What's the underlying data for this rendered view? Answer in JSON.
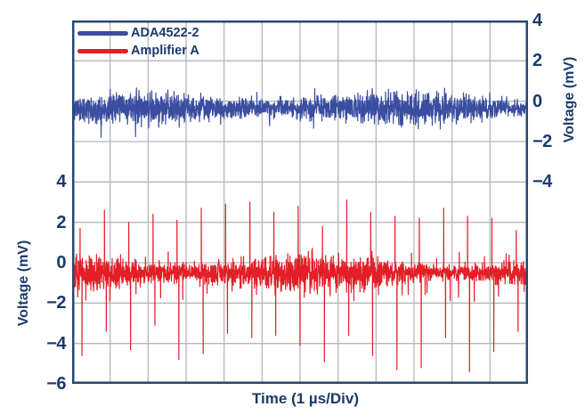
{
  "colors": {
    "text_navy": "#1a3a6c",
    "grid": "#b4b7c0",
    "border": "#27496f",
    "trace_blue": "#3a4da0",
    "trace_red": "#e31e26",
    "background": "#ffffff"
  },
  "figure": {
    "legend": [
      {
        "label": "ADA4522-2"
      },
      {
        "label": "Amplifier A"
      }
    ],
    "x_axis_title": "Time (1 µs/Div)",
    "left_axis_title": "Voltage (mV)",
    "right_axis_title": "Voltage (mV)"
  },
  "chart_data": {
    "type": "line",
    "title": "",
    "xlabel": "Time (1 µs/Div)",
    "x_divisions": 12,
    "x_div_unit_us": 1,
    "grid": {
      "cols": 12,
      "rows": 9,
      "mv_per_row": 2,
      "grid_on": true
    },
    "right_axis": {
      "title": "Voltage (mV)",
      "ticks": [
        4,
        2,
        0,
        -2,
        -4
      ],
      "tick_labels": [
        "4",
        "2",
        "0",
        "−2",
        "−4"
      ],
      "zero_row": 2,
      "applies_to": "ADA4522-2"
    },
    "left_axis": {
      "title": "Voltage (mV)",
      "ticks": [
        4,
        2,
        0,
        -2,
        -4,
        -6
      ],
      "tick_labels": [
        "4",
        "2",
        "0",
        "−2",
        "−4",
        "−6"
      ],
      "zero_row": 6,
      "applies_to": "Amplifier A"
    },
    "legend_position": "top-left-inside",
    "seed": 11,
    "series": [
      {
        "name": "ADA4522-2",
        "color": "#3a4da0",
        "axis": "right",
        "baseline_mv": -0.35,
        "noise_pp_mv": 1.0,
        "description": "flat wideband noise band ~1 mV p-p centered slightly below 0, no EMI spikes"
      },
      {
        "name": "Amplifier A",
        "color": "#e31e26",
        "axis": "left",
        "baseline_mv": -0.5,
        "noise_pp_mv": 1.1,
        "description": "noise band centered ~-0.5 mV with periodic bipolar EMI spikes every ~0.64 µs",
        "spikes": {
          "t_us": [
            0.21,
            0.85,
            1.49,
            2.13,
            2.76,
            3.4,
            4.04,
            4.68,
            5.31,
            5.95,
            6.59,
            7.23,
            7.86,
            8.5,
            9.14,
            9.78,
            10.41,
            11.05,
            11.69
          ],
          "up_mv": [
            1.7,
            2.6,
            2.0,
            2.4,
            2.1,
            2.7,
            2.9,
            3.0,
            2.5,
            2.8,
            1.8,
            3.1,
            2.5,
            2.3,
            2.2,
            2.7,
            2.3,
            2.2,
            1.6
          ],
          "down_mv": [
            -4.6,
            -3.4,
            -4.3,
            -3.1,
            -4.8,
            -4.5,
            -3.5,
            -3.7,
            -3.6,
            -4.1,
            -4.9,
            -3.6,
            -4.6,
            -5.3,
            -5.2,
            -3.7,
            -5.4,
            -4.4,
            -3.4
          ]
        }
      }
    ]
  }
}
